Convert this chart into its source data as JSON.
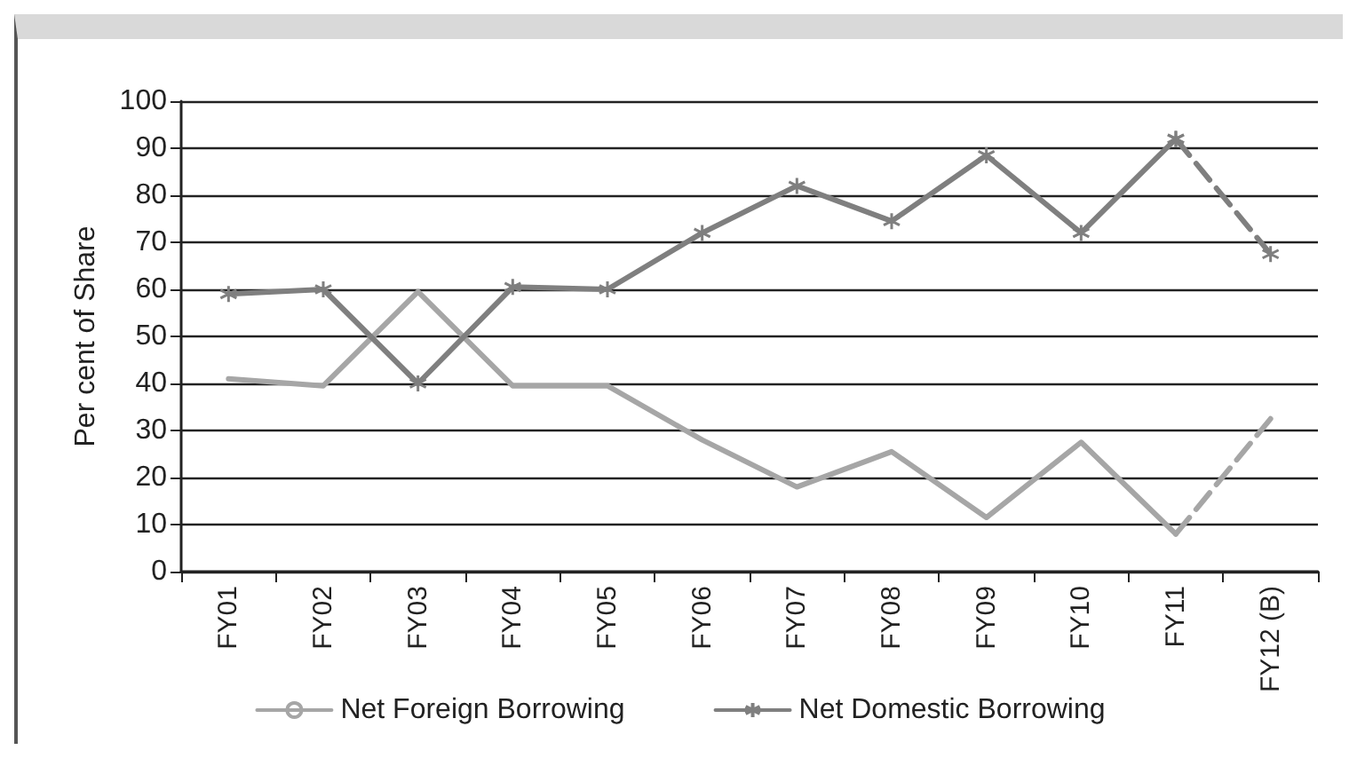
{
  "chart_data": {
    "type": "line",
    "ylabel": "Per cent of Share",
    "categories": [
      "FY01",
      "FY02",
      "FY03",
      "FY04",
      "FY05",
      "FY06",
      "FY07",
      "FY08",
      "FY09",
      "FY10",
      "FY11",
      "FY12 (B)"
    ],
    "series": [
      {
        "name": "Net Foreign Borrowing",
        "color": "#a6a6a6",
        "marker": "none",
        "line_style": "solid",
        "values": [
          41,
          39.5,
          59.5,
          39.5,
          39.5,
          28,
          18,
          25.5,
          11.5,
          27.5,
          8,
          null
        ]
      },
      {
        "name": "Net Domestic Borrowing",
        "color": "#7f7f7f",
        "marker": "cross",
        "line_style": "solid",
        "values": [
          59,
          60,
          40,
          60.5,
          60,
          72,
          82,
          74.5,
          88.5,
          72,
          92,
          null
        ]
      },
      {
        "color": "#a6a6a6",
        "marker": "none",
        "line_style": "dashed",
        "values": [
          null,
          null,
          null,
          null,
          null,
          null,
          null,
          null,
          null,
          null,
          8,
          32.5
        ]
      },
      {
        "color": "#7f7f7f",
        "marker": "cross",
        "line_style": "dashed",
        "values": [
          null,
          null,
          null,
          null,
          null,
          null,
          null,
          null,
          null,
          null,
          92,
          67.5
        ]
      }
    ],
    "ylim": [
      0,
      100
    ],
    "yticks": [
      0,
      10,
      20,
      30,
      40,
      50,
      60,
      70,
      80,
      90,
      100
    ],
    "grid": "y",
    "legend": "bottom"
  }
}
